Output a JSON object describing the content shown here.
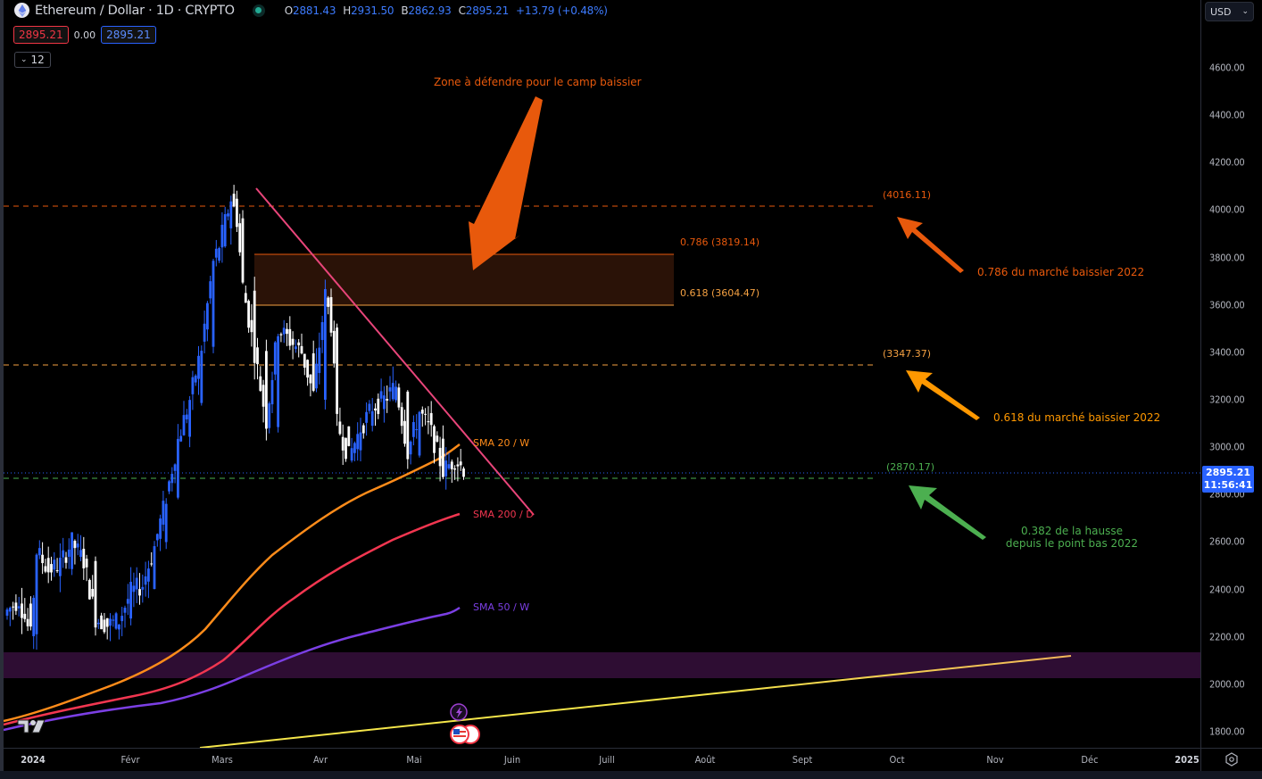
{
  "header": {
    "title": "Ethereum / Dollar · 1D · CRYPTO",
    "ohlc": {
      "open_label": "O",
      "open": "2881.43",
      "high_label": "H",
      "high": "2931.50",
      "low_label": "B",
      "low": "2862.93",
      "close_label": "C",
      "close": "2895.21",
      "change": "+13.79 (+0.48%)"
    },
    "sell_price": "2895.21",
    "spread": "0.00",
    "buy_price": "2895.21",
    "indicators_collapsed_count": "12",
    "currency": "USD"
  },
  "current_price": {
    "value": "2895.21",
    "countdown": "11:56:41"
  },
  "colors": {
    "up_candle": "#2962ff",
    "down_candle": "#ffffff",
    "sma20w": "#ff8c1a",
    "sma200d": "#f23650",
    "sma50w": "#7b3fe4",
    "trendline": "#e8457a",
    "fib_0786": "#e8590c",
    "fib_0618": "#f5a142",
    "support_green": "#4caf50",
    "zone_fill": "#2a1207",
    "purple_band": "#2e0d33",
    "yellow_line": "#f5e64a"
  },
  "annotations": {
    "zone_title": "Zone à défendre pour le camp baissier",
    "fib_786_label": "0.786 (3819.14)",
    "fib_618_label": "0.618 (3604.47)",
    "level_4016": "(4016.11)",
    "level_3347": "(3347.37)",
    "level_2870": "(2870.17)",
    "note_786": "0.786 du marché baissier 2022",
    "note_618": "0.618 du marché baissier 2022",
    "note_382_line1": "0.382 de la hausse",
    "note_382_line2": "depuis le point bas 2022",
    "sma20w_label": "SMA 20 / W",
    "sma200d_label": "SMA 200 / D",
    "sma50w_label": "SMA 50 / W"
  },
  "chart_data": {
    "type": "candlestick",
    "title": "Ethereum / Dollar · 1D · CRYPTO",
    "xlabel": "",
    "ylabel": "USD",
    "ylim": [
      1720,
      4800
    ],
    "y_ticks": [
      "4600.00",
      "4400.00",
      "4200.00",
      "4000.00",
      "3800.00",
      "3600.00",
      "3400.00",
      "3200.00",
      "3000.00",
      "2800.00",
      "2600.00",
      "2400.00",
      "2200.00",
      "2000.00",
      "1800.00"
    ],
    "x_ticks": [
      "2024",
      "Févr",
      "Mars",
      "Avr",
      "Mai",
      "Juin",
      "Juill",
      "Août",
      "Sept",
      "Oct",
      "Nov",
      "Déc",
      "2025"
    ],
    "grid": false,
    "last": {
      "open": 2881.43,
      "high": 2931.5,
      "low": 2862.93,
      "close": 2895.21,
      "change": 13.79,
      "change_pct": 0.48
    },
    "horizontal_levels": [
      {
        "label": "(4016.11)",
        "value": 4016.11,
        "style": "dashed",
        "color": "#e8590c"
      },
      {
        "label": "0.786 (3819.14)",
        "value": 3819.14,
        "style": "solid",
        "color": "#e8590c"
      },
      {
        "label": "0.618 (3604.47)",
        "value": 3604.47,
        "style": "solid",
        "color": "#f5a142"
      },
      {
        "label": "(3347.37)",
        "value": 3347.37,
        "style": "dashed",
        "color": "#f5a142"
      },
      {
        "label": "(2870.17)",
        "value": 2870.17,
        "style": "dashed",
        "color": "#4caf50"
      }
    ],
    "zones": [
      {
        "name": "Zone à défendre",
        "from": 3604.47,
        "to": 3819.14
      },
      {
        "name": "purple band",
        "from": 2030,
        "to": 2140
      }
    ],
    "series": [
      {
        "name": "SMA 20 / W",
        "points": [
          [
            0,
            1840
          ],
          [
            30,
            1890
          ],
          [
            60,
            1980
          ],
          [
            90,
            2150
          ],
          [
            110,
            2400
          ],
          [
            130,
            2620
          ],
          [
            150,
            2780
          ],
          [
            170,
            2880
          ],
          [
            180,
            2910
          ],
          [
            192,
            3010
          ]
        ]
      },
      {
        "name": "SMA 200 / D",
        "points": [
          [
            0,
            1830
          ],
          [
            40,
            1870
          ],
          [
            60,
            1910
          ],
          [
            80,
            1990
          ],
          [
            100,
            2160
          ],
          [
            120,
            2340
          ],
          [
            140,
            2480
          ],
          [
            160,
            2580
          ],
          [
            180,
            2660
          ],
          [
            192,
            2720
          ]
        ]
      },
      {
        "name": "SMA 50 / W",
        "points": [
          [
            0,
            1800
          ],
          [
            50,
            1840
          ],
          [
            80,
            1920
          ],
          [
            100,
            2010
          ],
          [
            130,
            2130
          ],
          [
            160,
            2220
          ],
          [
            180,
            2280
          ],
          [
            192,
            2330
          ]
        ]
      }
    ],
    "candles_approx": {
      "note": "daily candles Jan 1 - May 15 2024; approximate OHLC",
      "data": [
        [
          0,
          2290,
          2350,
          2220,
          2310
        ],
        [
          4,
          2310,
          2410,
          2250,
          2360
        ],
        [
          8,
          2360,
          2380,
          2150,
          2200
        ],
        [
          10,
          2220,
          2715,
          2100,
          2560
        ],
        [
          14,
          2560,
          2600,
          2450,
          2480
        ],
        [
          18,
          2470,
          2530,
          2400,
          2510
        ],
        [
          22,
          2500,
          2640,
          2460,
          2600
        ],
        [
          26,
          2600,
          2640,
          2490,
          2520
        ],
        [
          30,
          2520,
          2530,
          2250,
          2280
        ],
        [
          34,
          2280,
          2330,
          2170,
          2250
        ],
        [
          38,
          2250,
          2300,
          2180,
          2270
        ],
        [
          42,
          2280,
          2420,
          2270,
          2390
        ],
        [
          46,
          2390,
          2480,
          2330,
          2420
        ],
        [
          50,
          2420,
          2600,
          2400,
          2580
        ],
        [
          54,
          2580,
          2810,
          2560,
          2790
        ],
        [
          58,
          2790,
          3050,
          2780,
          3030
        ],
        [
          62,
          3030,
          3250,
          2980,
          3200
        ],
        [
          66,
          3200,
          3450,
          3120,
          3420
        ],
        [
          70,
          3420,
          3800,
          3380,
          3780
        ],
        [
          72,
          3780,
          3920,
          3650,
          3850
        ],
        [
          74,
          3850,
          4000,
          3780,
          3950
        ],
        [
          76,
          3950,
          4090,
          3880,
          4050
        ],
        [
          78,
          4050,
          4080,
          3850,
          3960
        ],
        [
          80,
          3960,
          3990,
          3600,
          3680
        ],
        [
          84,
          3680,
          3700,
          3250,
          3400
        ],
        [
          88,
          3400,
          3500,
          3060,
          3110
        ],
        [
          92,
          3110,
          3600,
          3080,
          3500
        ],
        [
          96,
          3500,
          3680,
          3380,
          3450
        ],
        [
          100,
          3450,
          3700,
          3300,
          3400
        ],
        [
          104,
          3400,
          3420,
          3100,
          3220
        ],
        [
          108,
          3220,
          3720,
          3180,
          3640
        ],
        [
          110,
          3640,
          3700,
          3400,
          3520
        ],
        [
          112,
          3520,
          3540,
          3050,
          3100
        ],
        [
          116,
          3100,
          3170,
          2860,
          2960
        ],
        [
          120,
          2960,
          3150,
          2880,
          3080
        ],
        [
          124,
          3080,
          3250,
          3010,
          3170
        ],
        [
          128,
          3170,
          3300,
          3100,
          3200
        ],
        [
          132,
          3200,
          3350,
          3080,
          3260
        ],
        [
          136,
          3260,
          3290,
          2820,
          2980
        ],
        [
          140,
          2980,
          3220,
          2940,
          3150
        ],
        [
          144,
          3150,
          3220,
          2900,
          3060
        ],
        [
          148,
          3060,
          3060,
          2880,
          2900
        ],
        [
          152,
          2900,
          3010,
          2860,
          2950
        ],
        [
          156,
          2950,
          2960,
          2880,
          2895
        ]
      ]
    },
    "trendline": {
      "from": [
        77,
        4090
      ],
      "to": [
        160,
        2720
      ]
    },
    "long_trendline": {
      "from": "Mars ~2024-02-26 at 1750",
      "to": "Déc ~2024-11-25 at 2125"
    }
  }
}
